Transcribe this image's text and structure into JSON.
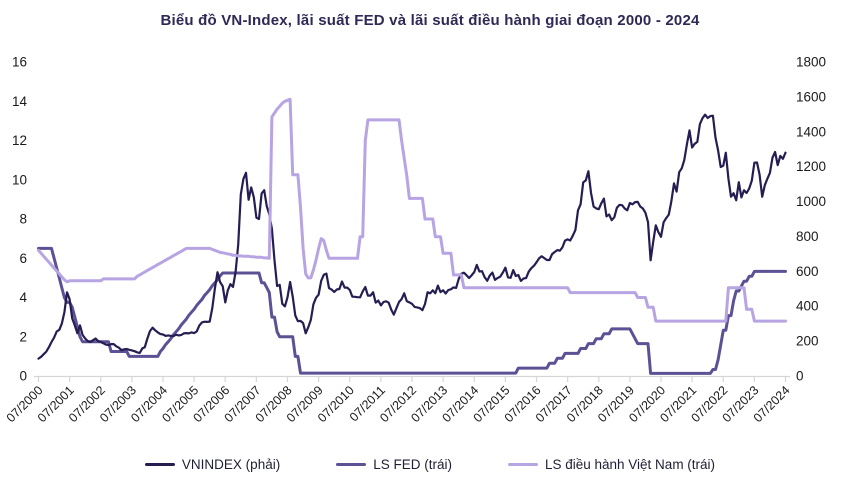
{
  "colors": {
    "background": "#ffffff",
    "title": "#2e2955",
    "axis_text": "#1a1a1a",
    "axis_line": "#d6d6d6",
    "vnindex": "#241e52",
    "fed": "#5d5195",
    "vn_policy": "#b7a4e3"
  },
  "chart_data": {
    "type": "line",
    "title": "Biểu đồ VN-Index, lãi suất FED và lãi suất điều hành giai đoạn 2000 - 2024",
    "x_frequency": "monthly",
    "x_range": [
      "07/2000",
      "07/2024"
    ],
    "x_tick_labels": [
      "07/2000",
      "07/2001",
      "07/2002",
      "07/2003",
      "07/2004",
      "07/2005",
      "07/2006",
      "07/2007",
      "07/2008",
      "07/2009",
      "07/2010",
      "07/2011",
      "07/2012",
      "07/2013",
      "07/2014",
      "07/2015",
      "07/2016",
      "07/2017",
      "07/2018",
      "07/2019",
      "07/2020",
      "07/2021",
      "07/2022",
      "07/2023",
      "07/2024"
    ],
    "y_left": {
      "ticks": [
        0,
        2,
        4,
        6,
        8,
        10,
        12,
        14,
        16
      ],
      "max": 16
    },
    "y_right": {
      "ticks": [
        0,
        200,
        400,
        600,
        800,
        1000,
        1200,
        1400,
        1600,
        1800
      ],
      "max": 1800
    },
    "grid": false,
    "legend_position": "bottom",
    "series": [
      {
        "id": "vnindex",
        "name": "VNINDEX (phải)",
        "axis": "right",
        "color": "#241e52",
        "width": 2.2,
        "values": [
          100,
          110,
          125,
          140,
          165,
          195,
          220,
          255,
          265,
          300,
          365,
          480,
          440,
          330,
          290,
          245,
          290,
          235,
          215,
          200,
          195,
          205,
          215,
          200,
          195,
          188,
          180,
          177,
          183,
          183,
          170,
          162,
          148,
          153,
          155,
          150,
          147,
          142,
          136,
          132,
          158,
          165,
          215,
          258,
          277,
          262,
          250,
          240,
          238,
          230,
          233,
          230,
          229,
          237,
          233,
          235,
          244,
          246,
          244,
          250,
          246,
          255,
          289,
          307,
          311,
          310,
          312,
          390,
          503,
          595,
          538,
          515,
          422,
          491,
          526,
          511,
          597,
          752,
          1041,
          1130,
          1165,
          1010,
          1081,
          1025,
          908,
          900,
          1046,
          1065,
          972,
          927,
          844,
          663,
          516,
          522,
          414,
          399,
          451,
          539,
          456,
          347,
          314,
          316,
          303,
          245,
          280,
          321,
          411,
          448,
          466,
          546,
          580,
          587,
          504,
          495,
          482,
          496,
          499,
          542,
          507,
          507,
          493,
          455,
          454,
          452,
          451,
          485,
          510,
          461,
          461,
          480,
          421,
          432,
          405,
          424,
          428,
          420,
          380,
          352,
          388,
          424,
          441,
          474,
          429,
          422,
          414,
          396,
          393,
          389,
          377,
          413,
          480,
          474,
          491,
          474,
          518,
          481,
          491,
          473,
          493,
          497,
          508,
          505,
          556,
          586,
          592,
          578,
          562,
          578,
          596,
          637,
          599,
          601,
          567,
          546,
          576,
          593,
          551,
          562,
          569,
          593,
          621,
          565,
          563,
          607,
          573,
          579,
          545,
          559,
          561,
          598,
          618,
          632,
          652,
          675,
          686,
          676,
          665,
          665,
          699,
          711,
          722,
          718,
          737,
          776,
          783,
          777,
          804,
          837,
          950,
          984,
          1110,
          1121,
          1174,
          1050,
          971,
          961,
          956,
          990,
          1017,
          915,
          926,
          893,
          910,
          965,
          981,
          979,
          960,
          950,
          992,
          984,
          997,
          998,
          971,
          961,
          936,
          882,
          663,
          769,
          864,
          825,
          798,
          881,
          905,
          925,
          1003,
          1104,
          1057,
          1168,
          1191,
          1239,
          1328,
          1408,
          1310,
          1331,
          1342,
          1444,
          1478,
          1498,
          1479,
          1490,
          1492,
          1366,
          1293,
          1198,
          1206,
          1280,
          1132,
          1028,
          1048,
          1007,
          1111,
          1024,
          1065,
          1049,
          1075,
          1120,
          1223,
          1224,
          1154,
          1028,
          1094,
          1130,
          1164,
          1252,
          1284,
          1209,
          1262,
          1245,
          1280
        ]
      },
      {
        "id": "fed",
        "name": "LS FED (trái)",
        "axis": "left",
        "color": "#5d5195",
        "width": 3,
        "values": [
          6.5,
          6.5,
          6.5,
          6.5,
          6.5,
          6.5,
          6.0,
          5.5,
          5.0,
          4.5,
          4.0,
          3.75,
          3.75,
          3.5,
          3.0,
          2.5,
          2.0,
          1.75,
          1.75,
          1.75,
          1.75,
          1.75,
          1.75,
          1.75,
          1.75,
          1.75,
          1.75,
          1.75,
          1.25,
          1.25,
          1.25,
          1.25,
          1.25,
          1.25,
          1.25,
          1.0,
          1.0,
          1.0,
          1.0,
          1.0,
          1.0,
          1.0,
          1.0,
          1.0,
          1.0,
          1.0,
          1.0,
          1.25,
          1.4,
          1.6,
          1.75,
          1.9,
          2.1,
          2.25,
          2.4,
          2.6,
          2.75,
          2.9,
          3.1,
          3.25,
          3.4,
          3.6,
          3.75,
          3.9,
          4.1,
          4.25,
          4.4,
          4.6,
          4.75,
          4.9,
          5.1,
          5.25,
          5.25,
          5.25,
          5.25,
          5.25,
          5.25,
          5.25,
          5.25,
          5.25,
          5.25,
          5.25,
          5.25,
          5.25,
          5.25,
          5.25,
          4.75,
          4.75,
          4.5,
          4.25,
          3.0,
          3.0,
          2.25,
          2.0,
          2.0,
          2.0,
          2.0,
          2.0,
          2.0,
          1.0,
          1.0,
          0.15,
          0.15,
          0.15,
          0.15,
          0.15,
          0.15,
          0.15,
          0.15,
          0.15,
          0.15,
          0.15,
          0.15,
          0.15,
          0.15,
          0.15,
          0.15,
          0.15,
          0.15,
          0.15,
          0.15,
          0.15,
          0.15,
          0.15,
          0.15,
          0.15,
          0.15,
          0.15,
          0.15,
          0.15,
          0.15,
          0.15,
          0.15,
          0.15,
          0.15,
          0.15,
          0.15,
          0.15,
          0.15,
          0.15,
          0.15,
          0.15,
          0.15,
          0.15,
          0.15,
          0.15,
          0.15,
          0.15,
          0.15,
          0.15,
          0.15,
          0.15,
          0.15,
          0.15,
          0.15,
          0.15,
          0.15,
          0.15,
          0.15,
          0.15,
          0.15,
          0.15,
          0.15,
          0.15,
          0.15,
          0.15,
          0.15,
          0.15,
          0.15,
          0.15,
          0.15,
          0.15,
          0.15,
          0.15,
          0.15,
          0.15,
          0.15,
          0.15,
          0.15,
          0.15,
          0.15,
          0.15,
          0.15,
          0.15,
          0.15,
          0.4,
          0.4,
          0.4,
          0.4,
          0.4,
          0.4,
          0.4,
          0.4,
          0.4,
          0.4,
          0.4,
          0.4,
          0.65,
          0.65,
          0.65,
          0.9,
          0.9,
          0.9,
          1.15,
          1.15,
          1.15,
          1.15,
          1.15,
          1.15,
          1.4,
          1.4,
          1.4,
          1.65,
          1.65,
          1.65,
          1.9,
          1.9,
          1.9,
          2.15,
          2.15,
          2.15,
          2.4,
          2.4,
          2.4,
          2.4,
          2.4,
          2.4,
          2.4,
          2.4,
          2.15,
          1.9,
          1.65,
          1.65,
          1.65,
          1.65,
          1.65,
          0.13,
          0.13,
          0.13,
          0.13,
          0.13,
          0.13,
          0.13,
          0.13,
          0.13,
          0.13,
          0.13,
          0.13,
          0.13,
          0.13,
          0.13,
          0.13,
          0.13,
          0.13,
          0.13,
          0.13,
          0.13,
          0.13,
          0.13,
          0.13,
          0.33,
          0.33,
          0.83,
          1.58,
          2.33,
          2.33,
          3.08,
          3.08,
          3.83,
          4.33,
          4.33,
          4.58,
          4.83,
          4.83,
          5.08,
          5.08,
          5.33,
          5.33,
          5.33,
          5.33,
          5.33,
          5.33,
          5.33,
          5.33,
          5.33,
          5.33,
          5.33,
          5.33,
          5.33
        ]
      },
      {
        "id": "vn-policy",
        "name": "LS điều hành Việt Nam (trái)",
        "axis": "left",
        "color": "#b7a4e3",
        "width": 3,
        "values": [
          6.4,
          6.25,
          6.1,
          5.95,
          5.8,
          5.65,
          5.5,
          5.35,
          5.2,
          5.05,
          4.9,
          4.8,
          4.85,
          4.85,
          4.85,
          4.85,
          4.85,
          4.85,
          4.85,
          4.85,
          4.85,
          4.85,
          4.85,
          4.85,
          4.85,
          4.95,
          4.95,
          4.95,
          4.95,
          4.95,
          4.95,
          4.95,
          4.95,
          4.95,
          4.95,
          4.95,
          4.95,
          4.95,
          5.08,
          5.15,
          5.23,
          5.3,
          5.38,
          5.45,
          5.53,
          5.6,
          5.68,
          5.75,
          5.83,
          5.9,
          5.98,
          6.05,
          6.13,
          6.2,
          6.28,
          6.35,
          6.43,
          6.5,
          6.5,
          6.5,
          6.5,
          6.5,
          6.5,
          6.5,
          6.5,
          6.5,
          6.5,
          6.45,
          6.4,
          6.35,
          6.3,
          6.28,
          6.25,
          6.22,
          6.2,
          6.15,
          6.15,
          6.12,
          6.12,
          6.1,
          6.1,
          6.1,
          6.08,
          6.08,
          6.05,
          6.05,
          6.05,
          6.02,
          6.02,
          6.0,
          13.2,
          13.4,
          13.6,
          13.75,
          13.9,
          14.0,
          14.05,
          14.1,
          10.25,
          10.25,
          10.25,
          8.6,
          6.5,
          5.2,
          5.0,
          5.0,
          5.4,
          5.9,
          6.5,
          7.0,
          6.9,
          6.4,
          6.0,
          6.0,
          6.0,
          6.0,
          6.0,
          6.0,
          6.0,
          6.0,
          6.0,
          6.0,
          6.0,
          6.0,
          7.1,
          7.1,
          12.0,
          13.05,
          13.05,
          13.05,
          13.05,
          13.05,
          13.05,
          13.05,
          13.05,
          13.05,
          13.05,
          13.05,
          13.05,
          13.05,
          12.0,
          11.1,
          10.2,
          9.05,
          9.05,
          9.05,
          9.05,
          9.05,
          9.05,
          8.0,
          8.0,
          8.0,
          8.0,
          7.1,
          7.1,
          7.1,
          6.25,
          6.25,
          6.25,
          6.25,
          5.15,
          5.15,
          5.15,
          5.15,
          4.5,
          4.5,
          4.5,
          4.5,
          4.5,
          4.5,
          4.5,
          4.5,
          4.5,
          4.5,
          4.5,
          4.5,
          4.5,
          4.5,
          4.5,
          4.5,
          4.5,
          4.5,
          4.5,
          4.5,
          4.5,
          4.5,
          4.5,
          4.5,
          4.5,
          4.5,
          4.5,
          4.5,
          4.5,
          4.5,
          4.5,
          4.5,
          4.5,
          4.5,
          4.5,
          4.5,
          4.5,
          4.5,
          4.5,
          4.5,
          4.5,
          4.25,
          4.25,
          4.25,
          4.25,
          4.25,
          4.25,
          4.25,
          4.25,
          4.25,
          4.25,
          4.25,
          4.25,
          4.25,
          4.25,
          4.25,
          4.25,
          4.25,
          4.25,
          4.25,
          4.25,
          4.25,
          4.25,
          4.25,
          4.25,
          4.25,
          4.25,
          4.0,
          4.0,
          4.0,
          4.0,
          3.5,
          3.5,
          3.5,
          2.8,
          2.8,
          2.8,
          2.8,
          2.8,
          2.8,
          2.8,
          2.8,
          2.8,
          2.8,
          2.8,
          2.8,
          2.8,
          2.8,
          2.8,
          2.8,
          2.8,
          2.8,
          2.8,
          2.8,
          2.8,
          2.8,
          2.8,
          2.8,
          2.8,
          2.8,
          2.8,
          2.8,
          4.5,
          4.5,
          4.5,
          4.5,
          4.5,
          4.5,
          4.5,
          3.4,
          3.4,
          3.4,
          2.8,
          2.8,
          2.8,
          2.8,
          2.8,
          2.8,
          2.8,
          2.8,
          2.8,
          2.8,
          2.8,
          2.8,
          2.8
        ]
      }
    ]
  },
  "legend": {
    "items": [
      {
        "label": "VNINDEX (phải)"
      },
      {
        "label": "LS FED (trái)"
      },
      {
        "label": "LS điều hành Việt Nam (trái)"
      }
    ]
  }
}
